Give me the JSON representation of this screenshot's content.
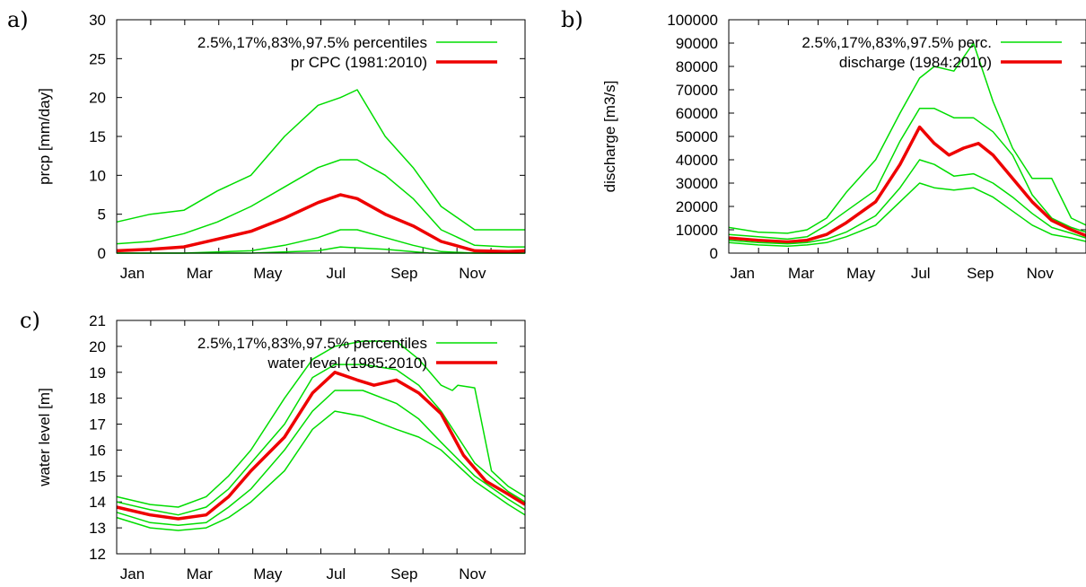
{
  "chart_data": [
    {
      "panel": "a)",
      "type": "line",
      "ylabel": "prcp [mm/day]",
      "ylim": [
        0,
        30
      ],
      "yticks": [
        0,
        5,
        10,
        15,
        20,
        25,
        30
      ],
      "xlim": [
        0,
        365
      ],
      "xtick_labels": [
        "Jan",
        "Mar",
        "May",
        "Jul",
        "Sep",
        "Nov"
      ],
      "xtick_days": [
        14,
        74,
        135,
        196,
        257,
        318
      ],
      "legend": {
        "position": "top-right",
        "entries": [
          {
            "label": "2.5%,17%,83%,97.5% percentiles",
            "color": "#00dd00"
          },
          {
            "label": "pr CPC  (1981:2010)",
            "color": "#ee0000"
          }
        ]
      },
      "series": [
        {
          "role": "p975",
          "color": "#00dd00",
          "x": [
            0,
            30,
            60,
            90,
            120,
            150,
            180,
            200,
            215,
            240,
            265,
            290,
            320,
            350,
            365
          ],
          "y": [
            4,
            5,
            5.5,
            8,
            10,
            15,
            19,
            20,
            21,
            15,
            11,
            6,
            3,
            3,
            3
          ]
        },
        {
          "role": "p83",
          "color": "#00dd00",
          "x": [
            0,
            30,
            60,
            90,
            120,
            150,
            180,
            200,
            215,
            240,
            265,
            290,
            320,
            350,
            365
          ],
          "y": [
            1.2,
            1.5,
            2.5,
            4,
            6,
            8.5,
            11,
            12,
            12,
            10,
            7,
            3,
            1,
            0.8,
            0.8
          ]
        },
        {
          "role": "p17",
          "color": "#00dd00",
          "x": [
            0,
            60,
            120,
            150,
            180,
            200,
            215,
            240,
            265,
            290,
            320,
            365
          ],
          "y": [
            0,
            0,
            0.3,
            1,
            2,
            3,
            3,
            2,
            1,
            0.2,
            0,
            0
          ]
        },
        {
          "role": "p2.5",
          "color": "#00dd00",
          "x": [
            0,
            120,
            180,
            200,
            240,
            280,
            365
          ],
          "y": [
            0,
            0,
            0.3,
            0.8,
            0.5,
            0,
            0
          ]
        },
        {
          "role": "mean",
          "color": "#ee0000",
          "x": [
            0,
            30,
            60,
            90,
            120,
            150,
            180,
            200,
            215,
            240,
            265,
            290,
            320,
            350,
            365
          ],
          "y": [
            0.3,
            0.5,
            0.8,
            1.8,
            2.8,
            4.5,
            6.5,
            7.5,
            7,
            5,
            3.5,
            1.5,
            0.3,
            0.2,
            0.3
          ]
        }
      ]
    },
    {
      "panel": "b)",
      "type": "line",
      "ylabel": "discharge [m3/s]",
      "ylim": [
        0,
        100000
      ],
      "yticks": [
        0,
        10000,
        20000,
        30000,
        40000,
        50000,
        60000,
        70000,
        80000,
        90000,
        100000
      ],
      "xlim": [
        0,
        365
      ],
      "xtick_labels": [
        "Jan",
        "Mar",
        "May",
        "Jul",
        "Sep",
        "Nov"
      ],
      "xtick_days": [
        14,
        74,
        135,
        196,
        257,
        318
      ],
      "legend": {
        "position": "top-right",
        "entries": [
          {
            "label": "2.5%,17%,83%,97.5% perc.",
            "color": "#00dd00"
          },
          {
            "label": "discharge (1984:2010)",
            "color": "#ee0000"
          }
        ]
      },
      "series": [
        {
          "role": "p975",
          "color": "#00dd00",
          "x": [
            0,
            30,
            60,
            80,
            100,
            120,
            150,
            175,
            195,
            210,
            230,
            250,
            270,
            290,
            310,
            330,
            350,
            365
          ],
          "y": [
            11000,
            9000,
            8500,
            10000,
            15000,
            26000,
            40000,
            60000,
            75000,
            80000,
            78000,
            90000,
            65000,
            45000,
            32000,
            32000,
            15000,
            12000
          ]
        },
        {
          "role": "p83",
          "color": "#00dd00",
          "x": [
            0,
            30,
            60,
            80,
            100,
            120,
            150,
            175,
            195,
            210,
            230,
            250,
            270,
            290,
            310,
            330,
            350,
            365
          ],
          "y": [
            8000,
            7000,
            6000,
            7000,
            12000,
            18000,
            27000,
            48000,
            62000,
            62000,
            58000,
            58000,
            52000,
            42000,
            25000,
            15000,
            11000,
            9000
          ]
        },
        {
          "role": "mean",
          "color": "#ee0000",
          "x": [
            0,
            30,
            60,
            80,
            100,
            120,
            150,
            175,
            195,
            210,
            225,
            240,
            255,
            270,
            290,
            310,
            330,
            350,
            365
          ],
          "y": [
            6500,
            5500,
            4800,
            5500,
            8000,
            13000,
            22000,
            38000,
            54000,
            47000,
            42000,
            45000,
            47000,
            42000,
            32000,
            22000,
            14000,
            10000,
            7500
          ]
        },
        {
          "role": "p17",
          "color": "#00dd00",
          "x": [
            0,
            30,
            60,
            80,
            100,
            120,
            150,
            175,
            195,
            210,
            230,
            250,
            270,
            290,
            310,
            330,
            350,
            365
          ],
          "y": [
            5500,
            4500,
            4000,
            4500,
            6000,
            9000,
            16000,
            28000,
            40000,
            38000,
            33000,
            34000,
            30000,
            24000,
            17000,
            11000,
            8500,
            6500
          ]
        },
        {
          "role": "p2.5",
          "color": "#00dd00",
          "x": [
            0,
            30,
            60,
            80,
            100,
            120,
            150,
            175,
            195,
            210,
            230,
            250,
            270,
            290,
            310,
            330,
            350,
            365
          ],
          "y": [
            4500,
            3500,
            3000,
            3500,
            4500,
            7000,
            12000,
            22000,
            30000,
            28000,
            27000,
            28000,
            24000,
            18000,
            12000,
            8000,
            6500,
            5000
          ]
        }
      ]
    },
    {
      "panel": "c)",
      "type": "line",
      "ylabel": "water level [m]",
      "ylim": [
        12,
        21
      ],
      "yticks": [
        12,
        13,
        14,
        15,
        16,
        17,
        18,
        19,
        20,
        21
      ],
      "xlim": [
        0,
        365
      ],
      "xtick_labels": [
        "Jan",
        "Mar",
        "May",
        "Jul",
        "Sep",
        "Nov"
      ],
      "xtick_days": [
        14,
        74,
        135,
        196,
        257,
        318
      ],
      "legend": {
        "position": "top-right",
        "entries": [
          {
            "label": "2.5%,17%,83%,97.5% percentiles",
            "color": "#00dd00"
          },
          {
            "label": "water level (1985:2010)",
            "color": "#ee0000"
          }
        ]
      },
      "series": [
        {
          "role": "p975",
          "color": "#00dd00",
          "x": [
            0,
            30,
            55,
            80,
            100,
            120,
            150,
            175,
            195,
            220,
            250,
            270,
            290,
            300,
            305,
            320,
            335,
            350,
            365
          ],
          "y": [
            14.2,
            13.9,
            13.8,
            14.2,
            15,
            16,
            18,
            19.5,
            20,
            20.2,
            20.2,
            19.5,
            18.5,
            18.3,
            18.5,
            18.4,
            15.2,
            14.6,
            14.2
          ]
        },
        {
          "role": "p83",
          "color": "#00dd00",
          "x": [
            0,
            30,
            55,
            80,
            100,
            120,
            150,
            175,
            195,
            220,
            250,
            270,
            290,
            320,
            350,
            365
          ],
          "y": [
            14.0,
            13.7,
            13.5,
            13.8,
            14.5,
            15.5,
            17,
            18.8,
            19.3,
            19.3,
            19.1,
            18.5,
            17.5,
            15.5,
            14.4,
            14.0
          ]
        },
        {
          "role": "mean",
          "color": "#ee0000",
          "x": [
            0,
            30,
            55,
            80,
            100,
            120,
            150,
            175,
            195,
            215,
            230,
            250,
            270,
            290,
            310,
            330,
            350,
            365
          ],
          "y": [
            13.8,
            13.5,
            13.35,
            13.5,
            14.2,
            15.2,
            16.5,
            18.2,
            19,
            18.7,
            18.5,
            18.7,
            18.2,
            17.4,
            15.8,
            14.8,
            14.3,
            13.9
          ]
        },
        {
          "role": "p17",
          "color": "#00dd00",
          "x": [
            0,
            30,
            55,
            80,
            100,
            120,
            150,
            175,
            195,
            220,
            250,
            270,
            290,
            320,
            350,
            365
          ],
          "y": [
            13.6,
            13.2,
            13.1,
            13.2,
            13.8,
            14.5,
            16,
            17.5,
            18.3,
            18.3,
            17.8,
            17.2,
            16.3,
            15.0,
            14.1,
            13.7
          ]
        },
        {
          "role": "p2.5",
          "color": "#00dd00",
          "x": [
            0,
            30,
            55,
            80,
            100,
            120,
            150,
            175,
            195,
            220,
            250,
            270,
            290,
            320,
            350,
            365
          ],
          "y": [
            13.4,
            13.0,
            12.9,
            13.0,
            13.4,
            14.0,
            15.2,
            16.8,
            17.5,
            17.3,
            16.8,
            16.5,
            16.0,
            14.8,
            13.9,
            13.5
          ]
        }
      ]
    }
  ]
}
